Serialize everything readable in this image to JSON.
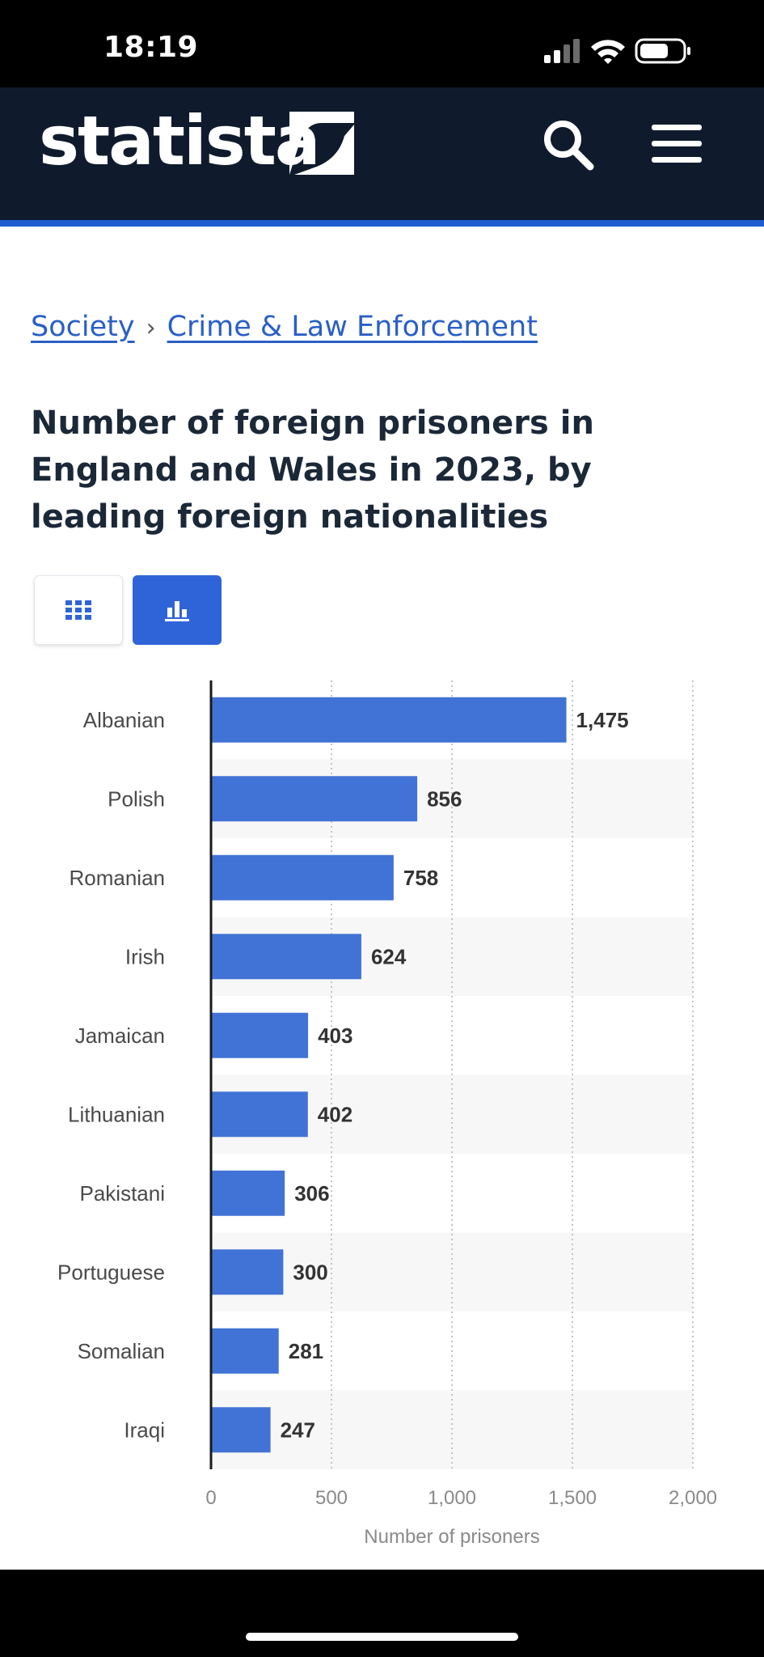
{
  "status_bar": {
    "time": "18:19"
  },
  "header": {
    "logo_text": "statista",
    "search_icon": "search-icon",
    "menu_icon": "hamburger-menu-icon",
    "bg_color": "#0f1b2d",
    "accent_color": "#1e5bd1"
  },
  "breadcrumb": {
    "items": [
      "Society",
      "Crime & Law Enforcement"
    ],
    "separator": "›"
  },
  "page": {
    "title": "Number of foreign prisoners in England and Wales in 2023, by leading foreign nationalities"
  },
  "view_toggle": {
    "table_icon": "grid-table-icon",
    "chart_icon": "bar-chart-icon",
    "active": "chart"
  },
  "chart_data": {
    "type": "bar",
    "orientation": "horizontal",
    "title": "Number of foreign prisoners in England and Wales in 2023, by leading foreign nationalities",
    "categories": [
      "Albanian",
      "Polish",
      "Romanian",
      "Irish",
      "Jamaican",
      "Lithuanian",
      "Pakistani",
      "Portuguese",
      "Somalian",
      "Iraqi"
    ],
    "values": [
      1475,
      856,
      758,
      624,
      403,
      402,
      306,
      300,
      281,
      247
    ],
    "value_labels": [
      "1,475",
      "856",
      "758",
      "624",
      "403",
      "402",
      "306",
      "300",
      "281",
      "247"
    ],
    "xlabel": "Number of prisoners",
    "ylabel": "",
    "xlim": [
      0,
      2000
    ],
    "x_ticks": [
      0,
      500,
      1000,
      1500,
      2000
    ],
    "x_tick_labels": [
      "0",
      "500",
      "1,000",
      "1,500",
      "2,000"
    ],
    "grid": true,
    "bar_color": "#4173d6",
    "stripe_color": "#f7f7f7"
  }
}
